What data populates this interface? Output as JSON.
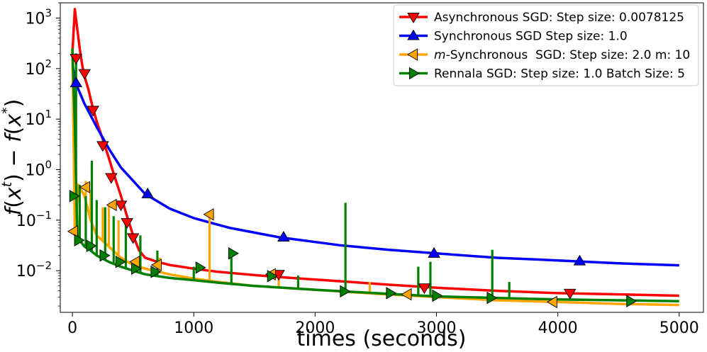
{
  "chart_data": {
    "type": "line",
    "title": "",
    "xlabel": "times (seconds)",
    "ylabel": "f(x^t) - f(x^*)",
    "yscale": "log",
    "xlim": [
      -100,
      5200
    ],
    "ylim": [
      0.0015,
      2000
    ],
    "grid": false,
    "legend_position": "top-right",
    "x_ticks": [
      0,
      1000,
      2000,
      3000,
      4000,
      5000
    ],
    "x_tick_labels": [
      "0",
      "1000",
      "2000",
      "3000",
      "4000",
      "5000"
    ],
    "y_ticks": [
      0.01,
      0.1,
      1,
      10,
      100,
      1000
    ],
    "y_tick_labels": [
      {
        "base": "10",
        "exp": "−2"
      },
      {
        "base": "10",
        "exp": "−1"
      },
      {
        "base": "10",
        "exp": "0"
      },
      {
        "base": "10",
        "exp": "1"
      },
      {
        "base": "10",
        "exp": "2"
      },
      {
        "base": "10",
        "exp": "3"
      }
    ],
    "series": [
      {
        "name": "Asynchronous SGD: Step size: 0.0078125",
        "color": "#ff0000",
        "marker": "triangle-down",
        "x": [
          0,
          20,
          40,
          60,
          80,
          100,
          130,
          160,
          200,
          250,
          300,
          350,
          400,
          450,
          500,
          550,
          600,
          700,
          800,
          1000,
          1200,
          1500,
          1800,
          2200,
          2600,
          3000,
          3500,
          4000,
          4500,
          5000
        ],
        "y": [
          200,
          1500,
          600,
          250,
          120,
          70,
          40,
          20,
          9,
          4,
          1.7,
          0.7,
          0.3,
          0.12,
          0.05,
          0.025,
          0.018,
          0.015,
          0.013,
          0.011,
          0.0095,
          0.0082,
          0.0072,
          0.0062,
          0.0053,
          0.0046,
          0.004,
          0.0036,
          0.0034,
          0.0032
        ],
        "marker_x": [
          30,
          100,
          170,
          250,
          320,
          400,
          450,
          500,
          1700,
          2900,
          4100
        ],
        "marker_y": [
          160,
          80,
          15,
          3,
          0.7,
          0.2,
          0.09,
          0.045,
          0.0085,
          0.0046,
          0.0036
        ]
      },
      {
        "name": "Synchronous SGD Step size: 1.0",
        "color": "#0000ff",
        "marker": "triangle-up",
        "x": [
          0,
          30,
          100,
          200,
          300,
          400,
          600,
          800,
          1000,
          1300,
          1700,
          2200,
          2600,
          3000,
          3500,
          4000,
          4500,
          5000
        ],
        "y": [
          120,
          50,
          20,
          7,
          2.6,
          1.1,
          0.33,
          0.17,
          0.11,
          0.07,
          0.046,
          0.032,
          0.026,
          0.022,
          0.018,
          0.016,
          0.014,
          0.0128
        ],
        "marker_x": [
          30,
          620,
          1740,
          2980,
          4180
        ],
        "marker_y": [
          52,
          0.33,
          0.046,
          0.022,
          0.0155
        ]
      },
      {
        "name": "m-Synchronous  SGD: Step size: 2.0 m: 10",
        "color": "#ffa500",
        "marker": "triangle-left",
        "x": [
          0,
          20,
          50,
          100,
          150,
          200,
          300,
          400,
          500,
          600,
          800,
          1000,
          1200,
          1500,
          2000,
          2500,
          3000,
          3500,
          4000,
          4500,
          5000
        ],
        "y": [
          250,
          0.06,
          0.5,
          0.3,
          0.1,
          0.05,
          0.03,
          0.018,
          0.013,
          0.011,
          0.0085,
          0.007,
          0.006,
          0.005,
          0.0042,
          0.0035,
          0.003,
          0.0026,
          0.0024,
          0.0022,
          0.0021
        ],
        "spikes": [
          {
            "x": 110,
            "y": 0.6
          },
          {
            "x": 150,
            "y": 0.4
          },
          {
            "x": 250,
            "y": 0.18
          },
          {
            "x": 300,
            "y": 0.2
          },
          {
            "x": 380,
            "y": 0.1
          },
          {
            "x": 720,
            "y": 0.018
          },
          {
            "x": 1130,
            "y": 0.13
          },
          {
            "x": 1700,
            "y": 0.009
          },
          {
            "x": 2450,
            "y": 0.006
          }
        ],
        "marker_x": [
          10,
          110,
          330,
          520,
          700,
          1130,
          1640,
          2760,
          3960
        ],
        "marker_y": [
          0.06,
          0.45,
          0.2,
          0.015,
          0.013,
          0.13,
          0.0085,
          0.0034,
          0.0024
        ]
      },
      {
        "name": "Rennala SGD: Step size: 1.0 Batch Size: 5",
        "color": "#008000",
        "marker": "triangle-right",
        "x": [
          0,
          20,
          40,
          60,
          100,
          150,
          200,
          300,
          400,
          500,
          600,
          800,
          1000,
          1200,
          1500,
          2000,
          2500,
          3000,
          3500,
          4000,
          4500,
          5000
        ],
        "y": [
          250,
          8,
          0.05,
          0.04,
          0.03,
          0.025,
          0.02,
          0.015,
          0.012,
          0.01,
          0.0085,
          0.0072,
          0.0065,
          0.0058,
          0.005,
          0.0042,
          0.0036,
          0.0031,
          0.0029,
          0.0027,
          0.0026,
          0.0025
        ],
        "spikes": [
          {
            "x": 30,
            "y": 200
          },
          {
            "x": 60,
            "y": 0.5
          },
          {
            "x": 110,
            "y": 0.3
          },
          {
            "x": 160,
            "y": 1.5
          },
          {
            "x": 200,
            "y": 0.25
          },
          {
            "x": 270,
            "y": 0.18
          },
          {
            "x": 340,
            "y": 0.12
          },
          {
            "x": 440,
            "y": 0.09
          },
          {
            "x": 560,
            "y": 0.05
          },
          {
            "x": 700,
            "y": 0.025
          },
          {
            "x": 1000,
            "y": 0.012
          },
          {
            "x": 1310,
            "y": 0.02
          },
          {
            "x": 1860,
            "y": 0.008
          },
          {
            "x": 2250,
            "y": 0.22
          },
          {
            "x": 2850,
            "y": 0.012
          },
          {
            "x": 2950,
            "y": 0.015
          },
          {
            "x": 3460,
            "y": 0.026
          },
          {
            "x": 3600,
            "y": 0.006
          }
        ],
        "marker_x": [
          10,
          50,
          150,
          260,
          390,
          520,
          680,
          1050,
          1320,
          1640,
          2240,
          2620,
          3000,
          3450,
          4600
        ],
        "marker_y": [
          0.3,
          0.04,
          0.031,
          0.02,
          0.015,
          0.011,
          0.0095,
          0.0115,
          0.022,
          0.0078,
          0.0039,
          0.0036,
          0.0032,
          0.0029,
          0.0025
        ]
      }
    ]
  }
}
